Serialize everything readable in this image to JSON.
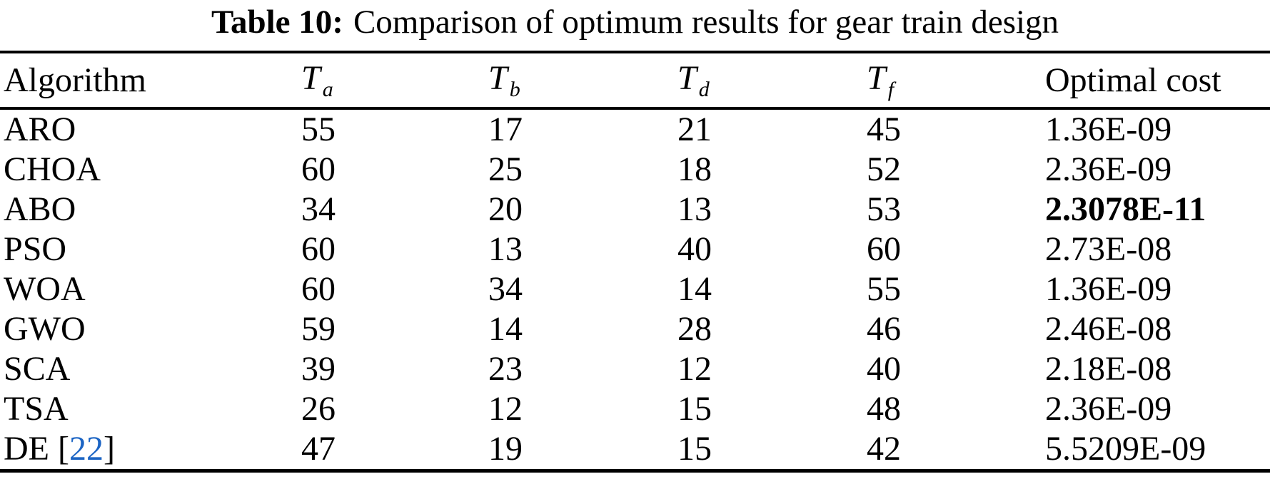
{
  "caption": {
    "label": "Table 10:",
    "text": "Comparison of optimum results for gear train design"
  },
  "table": {
    "columns": [
      {
        "id": "algorithm",
        "label": "Algorithm",
        "subscript": ""
      },
      {
        "id": "ta",
        "label": "T",
        "subscript": "a"
      },
      {
        "id": "tb",
        "label": "T",
        "subscript": "b"
      },
      {
        "id": "td",
        "label": "T",
        "subscript": "d"
      },
      {
        "id": "tf",
        "label": "T",
        "subscript": "f"
      },
      {
        "id": "cost",
        "label": "Optimal cost",
        "subscript": ""
      }
    ],
    "rows": [
      {
        "algorithm": [
          {
            "text": "ARO"
          }
        ],
        "ta": "55",
        "tb": "17",
        "td": "21",
        "tf": "45",
        "cost": "1.36E-09",
        "cost_bold": false
      },
      {
        "algorithm": [
          {
            "text": "CHOA"
          }
        ],
        "ta": "60",
        "tb": "25",
        "td": "18",
        "tf": "52",
        "cost": "2.36E-09",
        "cost_bold": false
      },
      {
        "algorithm": [
          {
            "text": "ABO"
          }
        ],
        "ta": "34",
        "tb": "20",
        "td": "13",
        "tf": "53",
        "cost": "2.3078E-11",
        "cost_bold": true
      },
      {
        "algorithm": [
          {
            "text": "PSO"
          }
        ],
        "ta": "60",
        "tb": "13",
        "td": "40",
        "tf": "60",
        "cost": "2.73E-08",
        "cost_bold": false
      },
      {
        "algorithm": [
          {
            "text": "WOA"
          }
        ],
        "ta": "60",
        "tb": "34",
        "td": "14",
        "tf": "55",
        "cost": "1.36E-09",
        "cost_bold": false
      },
      {
        "algorithm": [
          {
            "text": "GWO"
          }
        ],
        "ta": "59",
        "tb": "14",
        "td": "28",
        "tf": "46",
        "cost": "2.46E-08",
        "cost_bold": false
      },
      {
        "algorithm": [
          {
            "text": "SCA"
          }
        ],
        "ta": "39",
        "tb": "23",
        "td": "12",
        "tf": "40",
        "cost": "2.18E-08",
        "cost_bold": false
      },
      {
        "algorithm": [
          {
            "text": "TSA"
          }
        ],
        "ta": "26",
        "tb": "12",
        "td": "15",
        "tf": "48",
        "cost": "2.36E-09",
        "cost_bold": false
      },
      {
        "algorithm": [
          {
            "text": "DE ["
          },
          {
            "text": "22",
            "citation": true
          },
          {
            "text": "]"
          }
        ],
        "ta": "47",
        "tb": "19",
        "td": "15",
        "tf": "42",
        "cost": "5.5209E-09",
        "cost_bold": false
      }
    ]
  },
  "colors": {
    "text": "#000000",
    "rule": "#000000",
    "citation_link": "#1b64c4"
  }
}
